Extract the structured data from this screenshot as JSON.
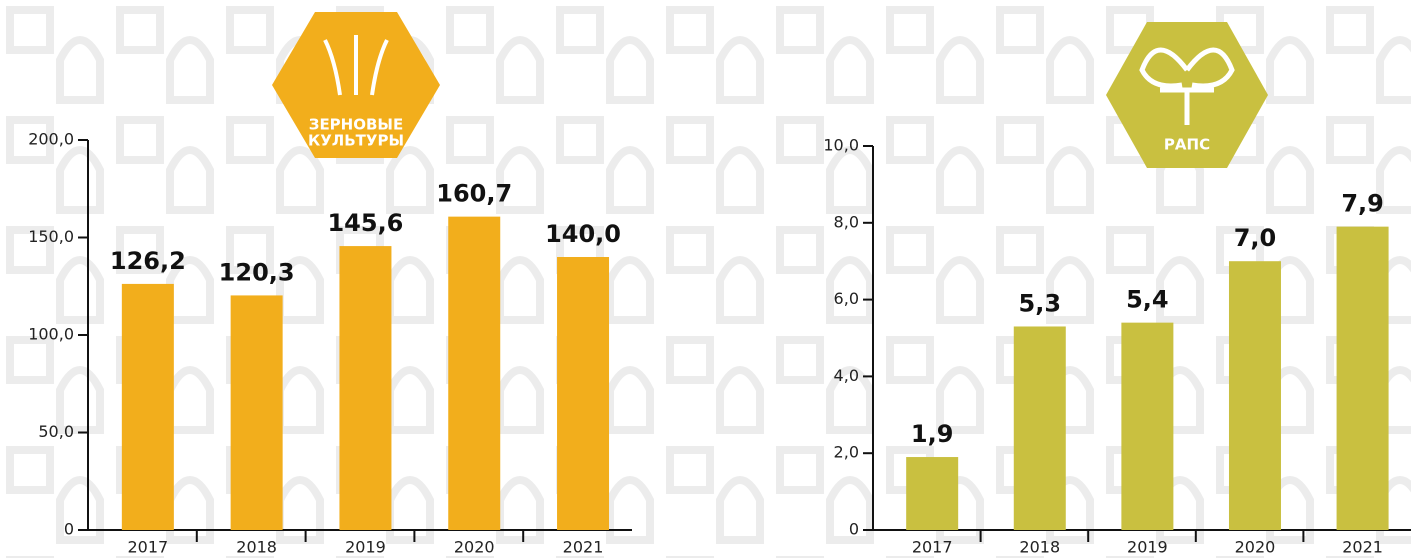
{
  "chart_data": [
    {
      "type": "bar",
      "title": "ЗЕРНОВЫЕ КУЛЬТУРЫ",
      "color": "#f2ae1c",
      "categories": [
        "2017",
        "2018",
        "2019",
        "2020",
        "2021"
      ],
      "values": [
        126.2,
        120.3,
        145.6,
        160.7,
        140.0
      ],
      "value_labels": [
        "126,2",
        "120,3",
        "145,6",
        "160,7",
        "140,0"
      ],
      "ylim": [
        0,
        200
      ],
      "yticks": [
        0,
        {
          "value": 50,
          "label": "50,0"
        },
        {
          "value": 100,
          "label": "100,0"
        },
        {
          "value": 150,
          "label": "150,0"
        },
        {
          "value": 200,
          "label": "200,0"
        }
      ]
    },
    {
      "type": "bar",
      "title": "РАПС",
      "color": "#c9c040",
      "categories": [
        "2017",
        "2018",
        "2019",
        "2020",
        "2021"
      ],
      "values": [
        1.9,
        5.3,
        5.4,
        7.0,
        7.9
      ],
      "value_labels": [
        "1,9",
        "5,3",
        "5,4",
        "7,0",
        "7,9"
      ],
      "ylim": [
        0,
        10
      ],
      "yticks": [
        0,
        {
          "value": 2,
          "label": "2,0"
        },
        {
          "value": 4,
          "label": "4,0"
        },
        {
          "value": 6,
          "label": "6,0"
        },
        {
          "value": 8,
          "label": "8,0"
        },
        {
          "value": 10,
          "label": "10,0"
        }
      ]
    }
  ]
}
